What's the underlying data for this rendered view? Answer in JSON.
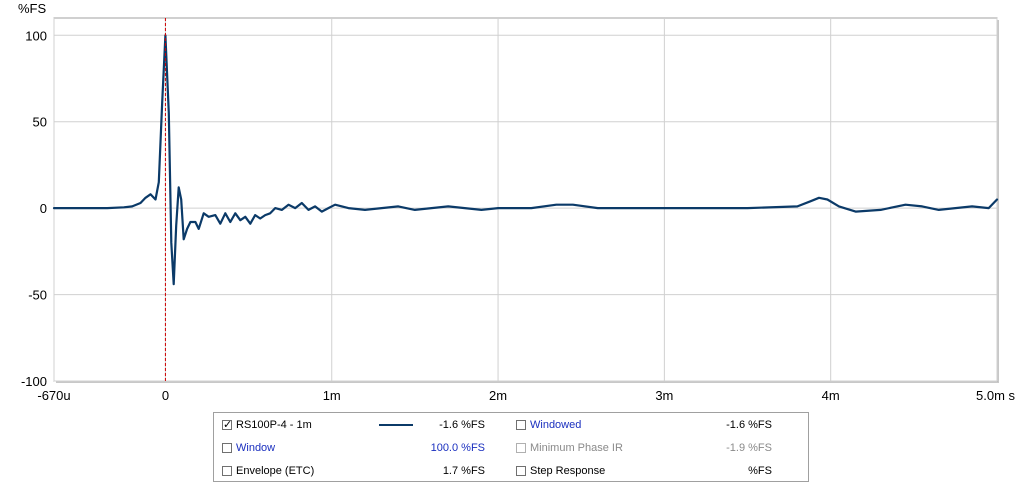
{
  "chart_data": {
    "type": "line",
    "ylabel": "%FS",
    "ylim": [
      -100,
      110
    ],
    "xlim": [
      -0.67,
      5.0
    ],
    "x_unit": "ms",
    "y_ticks": [
      {
        "value": 100,
        "label": "100"
      },
      {
        "value": 50,
        "label": "50"
      },
      {
        "value": 0,
        "label": "0"
      },
      {
        "value": -50,
        "label": "-50"
      },
      {
        "value": -100,
        "label": "-100"
      }
    ],
    "x_ticks": [
      {
        "value": -0.67,
        "label": "-670u"
      },
      {
        "value": 0,
        "label": "0"
      },
      {
        "value": 1,
        "label": "1m"
      },
      {
        "value": 2,
        "label": "2m"
      },
      {
        "value": 3,
        "label": "3m"
      },
      {
        "value": 4,
        "label": "4m"
      },
      {
        "value": 5,
        "label": "5.0m s"
      }
    ],
    "grid": true,
    "cursor_x": 0,
    "series": [
      {
        "name": "RS100P-4 - 1m",
        "color": "#0b3a68",
        "x": [
          -0.67,
          -0.5,
          -0.35,
          -0.25,
          -0.2,
          -0.15,
          -0.12,
          -0.09,
          -0.06,
          -0.04,
          -0.02,
          0,
          0.02,
          0.035,
          0.05,
          0.065,
          0.08,
          0.095,
          0.11,
          0.13,
          0.15,
          0.18,
          0.2,
          0.23,
          0.26,
          0.3,
          0.33,
          0.36,
          0.39,
          0.42,
          0.45,
          0.48,
          0.51,
          0.54,
          0.57,
          0.6,
          0.63,
          0.66,
          0.7,
          0.74,
          0.78,
          0.82,
          0.86,
          0.9,
          0.94,
          0.98,
          1.02,
          1.1,
          1.2,
          1.3,
          1.4,
          1.5,
          1.6,
          1.7,
          1.8,
          1.9,
          2.0,
          2.2,
          2.35,
          2.45,
          2.6,
          2.8,
          3.0,
          3.2,
          3.5,
          3.8,
          3.88,
          3.93,
          3.98,
          4.05,
          4.15,
          4.3,
          4.45,
          4.55,
          4.65,
          4.75,
          4.85,
          4.95,
          5.0
        ],
        "y": [
          0,
          0,
          0,
          0.5,
          1,
          3,
          6,
          8,
          5,
          15,
          60,
          100,
          55,
          -20,
          -44,
          -10,
          12,
          5,
          -18,
          -12,
          -8,
          -8,
          -12,
          -3,
          -5,
          -4,
          -9,
          -3,
          -8,
          -3,
          -7,
          -5,
          -9,
          -4,
          -6,
          -4,
          -3,
          0,
          -1,
          2,
          0,
          3,
          -1,
          1,
          -2,
          0,
          2,
          0,
          -1,
          0,
          1,
          -1,
          0,
          1,
          0,
          -1,
          0,
          0,
          2,
          2,
          0,
          0,
          0,
          0,
          0,
          1,
          4,
          6,
          5,
          1,
          -2,
          -1,
          2,
          1,
          -1,
          0,
          1,
          0,
          5
        ]
      }
    ]
  },
  "legend": {
    "rows": [
      {
        "col1_label": "RS100P-4 - 1m",
        "col1_value": "-1.6 %FS",
        "col2_label": "Windowed",
        "col2_value": "-1.6 %FS"
      },
      {
        "col1_label": "Window",
        "col1_value": "100.0 %FS",
        "col2_label": "Minimum Phase IR",
        "col2_value": "-1.9 %FS"
      },
      {
        "col1_label": "Envelope (ETC)",
        "col1_value": "1.7 %FS",
        "col2_label": "Step Response",
        "col2_value": "%FS"
      }
    ],
    "colors": {
      "normal": "#000000",
      "link": "#1a2fbf",
      "disabled": "#8a8a8a",
      "series_line": "#0b3a68",
      "cursor": "#d00000"
    }
  }
}
